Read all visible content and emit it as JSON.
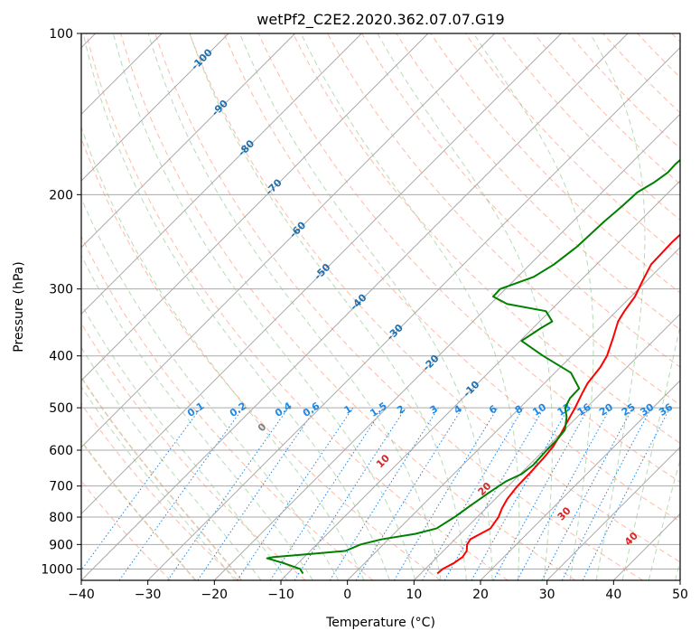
{
  "chart_data": {
    "type": "line",
    "title": "wetPf2_C2E2.2020.362.07.07.G19",
    "xlabel": "Temperature (°C)",
    "ylabel": "Pressure (hPa)",
    "xlim": [
      -40,
      50
    ],
    "ylim": [
      1050,
      100
    ],
    "y_scale": "log",
    "grid": true,
    "x_ticks": [
      -40,
      -30,
      -20,
      -10,
      0,
      10,
      20,
      30,
      40,
      50
    ],
    "x_tick_labels": [
      "−40",
      "−30",
      "−20",
      "−10",
      "0",
      "10",
      "20",
      "30",
      "40",
      "50"
    ],
    "y_ticks": [
      100,
      200,
      300,
      400,
      500,
      600,
      700,
      800,
      900,
      1000
    ],
    "y_tick_labels": [
      "100",
      "200",
      "300",
      "400",
      "500",
      "600",
      "700",
      "800",
      "900",
      "1000"
    ],
    "series": [
      {
        "color": "#ff0000",
        "points": [
          [
            12.5,
            1020
          ],
          [
            12.6,
            1000
          ],
          [
            13.4,
            975
          ],
          [
            13.8,
            950
          ],
          [
            13.5,
            925
          ],
          [
            12.6,
            900
          ],
          [
            12.3,
            880
          ],
          [
            13.0,
            860
          ],
          [
            13.7,
            840
          ],
          [
            13.2,
            800
          ],
          [
            12.4,
            770
          ],
          [
            11.8,
            740
          ],
          [
            11.4,
            700
          ],
          [
            11.3,
            660
          ],
          [
            11.1,
            620
          ],
          [
            10.8,
            590
          ],
          [
            10.1,
            560
          ],
          [
            9.2,
            530
          ],
          [
            8.3,
            500
          ],
          [
            7.2,
            470
          ],
          [
            6.5,
            450
          ],
          [
            6.0,
            420
          ],
          [
            5.3,
            400
          ],
          [
            3.5,
            370
          ],
          [
            1.8,
            345
          ],
          [
            1.2,
            330
          ],
          [
            0.6,
            310
          ],
          [
            -0.6,
            290
          ],
          [
            -1.8,
            270
          ],
          [
            -2.0,
            245
          ],
          [
            -1.8,
            230
          ],
          [
            -1.4,
            215
          ],
          [
            -0.6,
            200
          ],
          [
            0.5,
            187
          ],
          [
            2.4,
            175
          ],
          [
            4.2,
            162
          ],
          [
            6.0,
            150
          ],
          [
            7.5,
            140
          ],
          [
            8.7,
            133
          ],
          [
            9.9,
            125
          ],
          [
            11.0,
            116
          ],
          [
            11.9,
            110
          ],
          [
            13.0,
            103
          ],
          [
            13.6,
            100
          ]
        ]
      },
      {
        "color": "#008000",
        "points": [
          [
            -7.7,
            1020
          ],
          [
            -8.8,
            1000
          ],
          [
            -12.2,
            975
          ],
          [
            -15.4,
            955
          ],
          [
            -14.6,
            950
          ],
          [
            -10.5,
            940
          ],
          [
            -4.7,
            925
          ],
          [
            -3.4,
            900
          ],
          [
            -1.0,
            880
          ],
          [
            3.2,
            860
          ],
          [
            5.6,
            840
          ],
          [
            6.6,
            800
          ],
          [
            7.3,
            760
          ],
          [
            8.1,
            720
          ],
          [
            9.0,
            685
          ],
          [
            10.2,
            665
          ],
          [
            10.6,
            640
          ],
          [
            10.4,
            600
          ],
          [
            10.4,
            575
          ],
          [
            10.1,
            550
          ],
          [
            8.4,
            520
          ],
          [
            6.8,
            500
          ],
          [
            6.1,
            480
          ],
          [
            6.0,
            460
          ],
          [
            2.4,
            430
          ],
          [
            -4.3,
            400
          ],
          [
            -9.8,
            375
          ],
          [
            -8.8,
            355
          ],
          [
            -8.1,
            345
          ],
          [
            -10.6,
            330
          ],
          [
            -17.5,
            320
          ],
          [
            -20.7,
            310
          ],
          [
            -20.8,
            300
          ],
          [
            -17.6,
            285
          ],
          [
            -16.4,
            270
          ],
          [
            -15.6,
            250
          ],
          [
            -15.3,
            225
          ],
          [
            -14.9,
            210
          ],
          [
            -14.7,
            198
          ],
          [
            -13.7,
            190
          ],
          [
            -13.1,
            182
          ],
          [
            -13.2,
            175
          ],
          [
            -12.9,
            165
          ],
          [
            -12.2,
            155
          ],
          [
            -11.3,
            145
          ],
          [
            -10.3,
            135
          ],
          [
            -9.6,
            128
          ],
          [
            -8.7,
            120
          ],
          [
            -7.7,
            112
          ],
          [
            -6.3,
            106
          ],
          [
            -4.3,
            100
          ]
        ]
      }
    ],
    "mixing_ratio_labels": [
      "0.1",
      "0.2",
      "0.4",
      "0.6",
      "1",
      "1.5",
      "2",
      "3",
      "4",
      "6",
      "8",
      "10",
      "13",
      "16",
      "20",
      "25",
      "30",
      "36"
    ],
    "isotherm_labels": [
      "-100",
      "-90",
      "-80",
      "-70",
      "-60",
      "-50",
      "-40",
      "-30",
      "-20",
      "-10"
    ],
    "moist_adiabat_labels": [
      "0",
      "10",
      "20",
      "30",
      "40"
    ],
    "colors": {
      "temperature": "#ff0000",
      "dewpoint": "#008000",
      "isotherm": "#aaaaaa",
      "isotherm_label": "#1f6fb0",
      "dry_adiabat": "#ff8c69",
      "moist_adiabat": "#7bbd7b",
      "mixing_ratio": "#1e88e5",
      "moist_label": "#d62728",
      "zero_label": "#808080",
      "lcl_curve": "#d2b48c"
    }
  }
}
